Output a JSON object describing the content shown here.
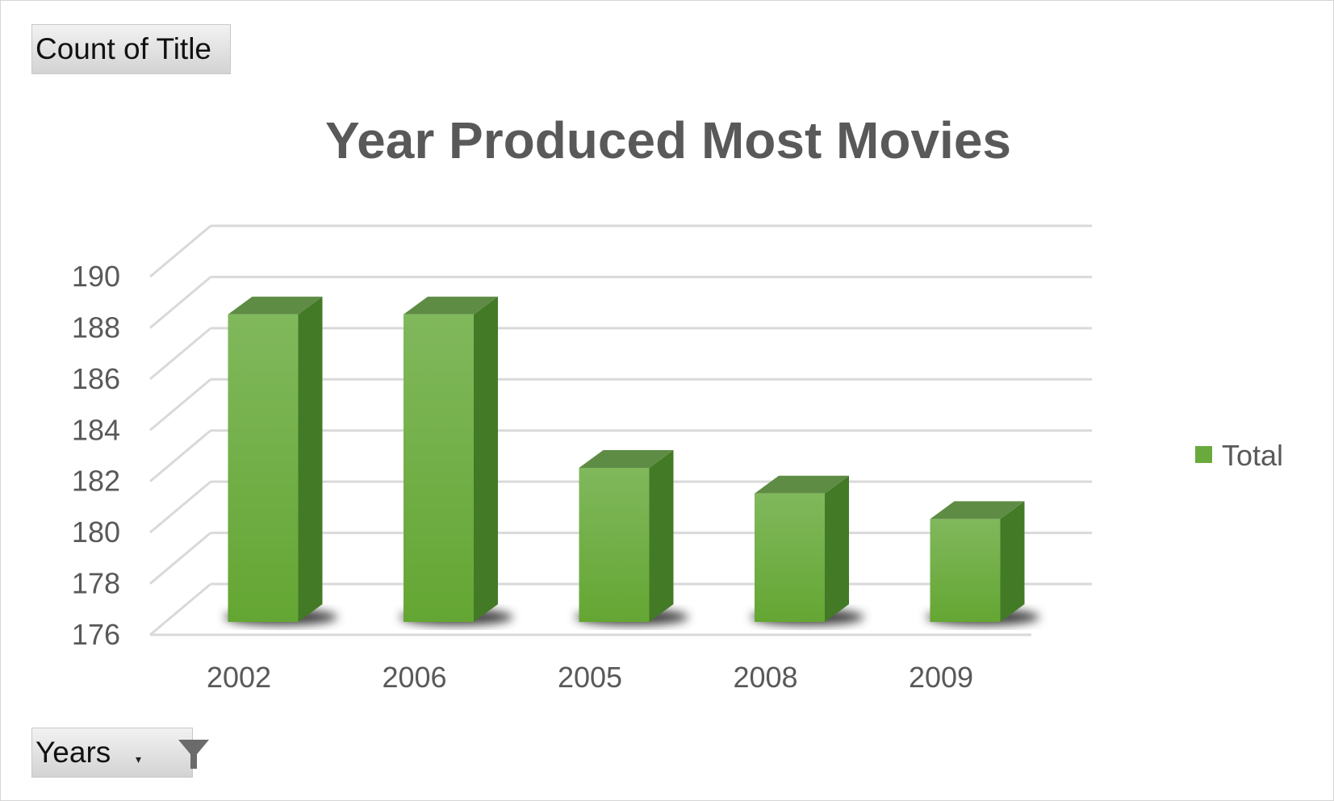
{
  "field_buttons": {
    "values": "Count of Title",
    "rows": "Years"
  },
  "icons": {
    "filter": "filter-funnel-icon",
    "dropdown": "dropdown-arrow-icon"
  },
  "colors": {
    "bar_front_light": "#80b85c",
    "bar_front_dark": "#64a633",
    "bar_side": "#437a26",
    "bar_top": "#5f8c45",
    "grid": "#d9d9d9",
    "text": "#595959"
  },
  "chart_data": {
    "type": "bar",
    "title": "Year Produced Most Movies",
    "categories": [
      "2002",
      "2006",
      "2005",
      "2008",
      "2009"
    ],
    "series": [
      {
        "name": "Total",
        "values": [
          189,
          189,
          183,
          182,
          181
        ]
      }
    ],
    "ylim": [
      176,
      190
    ],
    "yticks": [
      "176",
      "178",
      "180",
      "182",
      "184",
      "186",
      "188",
      "190"
    ],
    "xlabel": "",
    "ylabel": "",
    "grid": true,
    "legend_position": "right",
    "style": "3d-column"
  }
}
